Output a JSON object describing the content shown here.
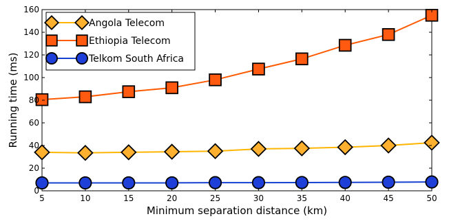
{
  "chart_data": {
    "type": "line",
    "title": "",
    "xlabel": "Minimum separation distance (km)",
    "ylabel": "Running time (ms)",
    "x": [
      5,
      10,
      15,
      20,
      25,
      30,
      35,
      40,
      45,
      50
    ],
    "xlim": [
      5,
      50
    ],
    "ylim": [
      0,
      160
    ],
    "xticks": [
      5,
      10,
      15,
      20,
      25,
      30,
      35,
      40,
      45,
      50
    ],
    "yticks": [
      0,
      20,
      40,
      60,
      80,
      100,
      120,
      140,
      160
    ],
    "grid": false,
    "legend_position": "top-left",
    "series": [
      {
        "name": "Angola Telecom",
        "marker": "diamond",
        "line_color": "#FFB400",
        "marker_color": "#FFB02E",
        "values": [
          34,
          33.5,
          34,
          34.5,
          35,
          37,
          37.5,
          38.5,
          40,
          42.5
        ]
      },
      {
        "name": "Ethiopia Telecom",
        "marker": "square",
        "line_color": "#FF5A00",
        "marker_color": "#FF5A10",
        "values": [
          80.5,
          83,
          87.5,
          91,
          98,
          107.5,
          116.5,
          128.5,
          138,
          155
        ]
      },
      {
        "name": "Telkom South Africa",
        "marker": "circle",
        "line_color": "#1540D0",
        "marker_color": "#1E40D8",
        "values": [
          7,
          7,
          7,
          7,
          7.2,
          7.2,
          7.3,
          7.4,
          7.6,
          7.8
        ]
      }
    ]
  }
}
